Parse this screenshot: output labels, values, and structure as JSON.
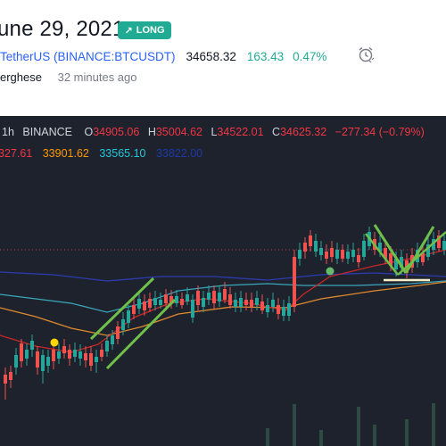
{
  "header": {
    "date": "une 29, 2021",
    "badge": "LONG",
    "symbol": "TetherUS (BINANCE:BTCUSDT)",
    "price": "34658.32",
    "change": "163.43",
    "change_pct": "0.47%",
    "author": "erghese",
    "time_ago": "32 minutes ago"
  },
  "chart": {
    "timeframe": "1h",
    "exchange": "BINANCE",
    "ohlc": {
      "o_label": "O",
      "o": "34905.06",
      "h_label": "H",
      "h": "35004.62",
      "l_label": "L",
      "l": "34522.01",
      "c_label": "C",
      "c": "34625.32",
      "chg": "−277.34 (−0.79%)"
    },
    "ma_values": [
      {
        "value": "327.61",
        "color": "#f23645"
      },
      {
        "value": "33901.62",
        "color": "#ff9800"
      },
      {
        "value": "33565.10",
        "color": "#26c6da"
      },
      {
        "value": "33822.00",
        "color": "#1e3aa8"
      }
    ],
    "colors": {
      "background": "#1e222d",
      "up": "#26a69a",
      "down": "#ef5350",
      "drawing": "#6fbf4a",
      "ma_red": "#c62828",
      "ma_orange": "#e08a2e",
      "ma_cyan": "#3aa6b9",
      "ma_blue": "#2d3bb0",
      "dot_yellow": "#ffd600",
      "dot_green": "#66bb6a"
    }
  }
}
